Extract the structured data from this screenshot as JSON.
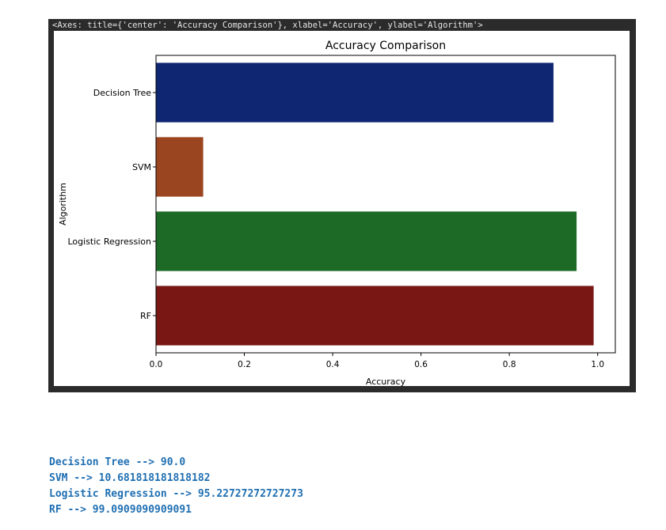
{
  "output": {
    "axes_repr": "<Axes: title={'center': 'Accuracy Comparison'}, xlabel='Accuracy', ylabel='Algorithm'>",
    "print_lines": [
      "Decision Tree --> 90.0",
      "SVM --> 10.681818181818182",
      "Logistic Regression --> 95.22727272727273",
      "RF --> 99.0909090909091"
    ]
  },
  "chart_data": {
    "type": "bar",
    "orientation": "horizontal",
    "title": "Accuracy Comparison",
    "xlabel": "Accuracy",
    "ylabel": "Algorithm",
    "categories": [
      "Decision Tree",
      "SVM",
      "Logistic Regression",
      "RF"
    ],
    "values": [
      0.9,
      0.10681818181818183,
      0.9522727272727273,
      0.990909090909091
    ],
    "colors": [
      "#0f2672",
      "#9b4520",
      "#1c6a26",
      "#781714"
    ],
    "xlim": [
      0.0,
      1.04
    ],
    "xticks": [
      "0.0",
      "0.2",
      "0.4",
      "0.6",
      "0.8",
      "1.0"
    ],
    "grid": false
  }
}
